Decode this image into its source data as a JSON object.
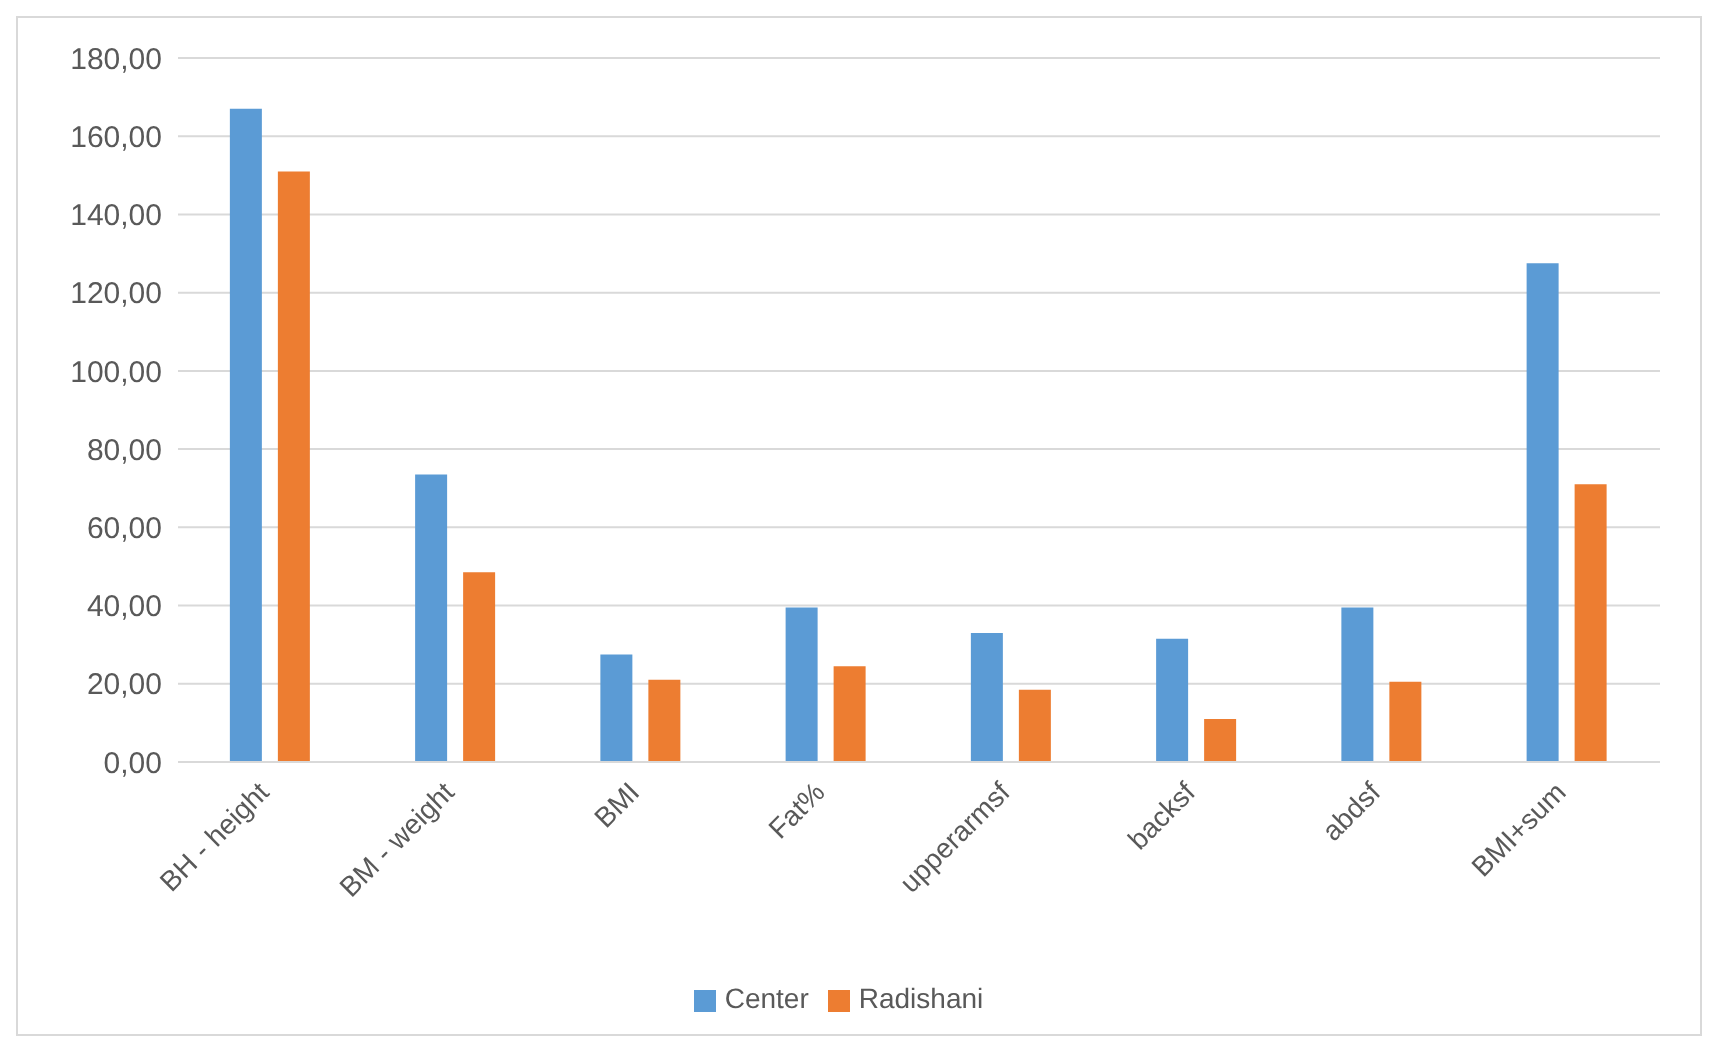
{
  "chart_data": {
    "type": "bar",
    "categories": [
      "BH - height",
      "BM - weight",
      "BMI",
      "Fat%",
      "upperarmsf",
      "backsf",
      "abdsf",
      "BMI+sum"
    ],
    "series": [
      {
        "name": "Center",
        "color": "#5b9bd5",
        "values": [
          167,
          73.5,
          27.5,
          39.5,
          33,
          31.5,
          39.5,
          127.5
        ]
      },
      {
        "name": "Radishani",
        "color": "#ed7d31",
        "values": [
          151,
          48.5,
          21,
          24.5,
          18.5,
          11,
          20.5,
          71
        ]
      }
    ],
    "ylim": [
      0,
      180
    ],
    "yticks": [
      {
        "value": 0,
        "label": "0,00"
      },
      {
        "value": 20,
        "label": "20,00"
      },
      {
        "value": 40,
        "label": "40,00"
      },
      {
        "value": 60,
        "label": "60,00"
      },
      {
        "value": 80,
        "label": "80,00"
      },
      {
        "value": 100,
        "label": "100,00"
      },
      {
        "value": 120,
        "label": "120,00"
      },
      {
        "value": 140,
        "label": "140,00"
      },
      {
        "value": 160,
        "label": "160,00"
      },
      {
        "value": 180,
        "label": "180,00"
      }
    ],
    "grid": "y",
    "legend": "bottom"
  }
}
